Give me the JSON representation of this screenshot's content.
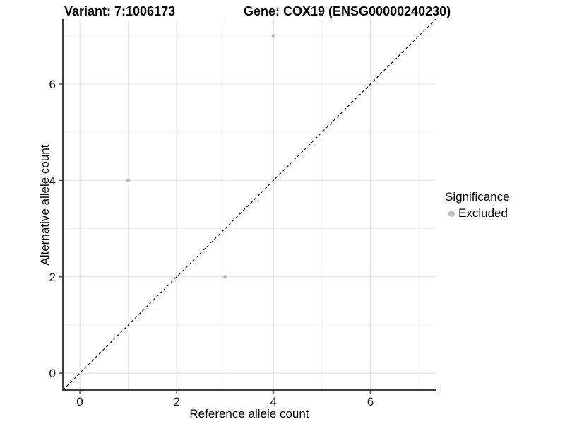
{
  "titles": {
    "variant": "Variant: 7:1006173",
    "gene": "Gene: COX19 (ENSG00000240230)"
  },
  "chart_data": {
    "type": "scatter",
    "title": "Variant: 7:1006173   Gene: COX19 (ENSG00000240230)",
    "xlabel": "Reference allele count",
    "ylabel": "Alternative allele count",
    "xlim": [
      -0.35,
      7.35
    ],
    "ylim": [
      -0.35,
      7.35
    ],
    "x_ticks": [
      0,
      2,
      4,
      6
    ],
    "y_ticks": [
      0,
      2,
      4,
      6
    ],
    "x_tick_labels": [
      "0",
      "2",
      "4",
      "6"
    ],
    "y_tick_labels": [
      "0",
      "2",
      "4",
      "6"
    ],
    "x_minor": [
      1,
      3,
      5,
      7
    ],
    "y_minor": [
      1,
      3,
      5,
      7
    ],
    "grid": true,
    "series": [
      {
        "name": "Excluded",
        "color": "#bebebe",
        "points": [
          {
            "x": 4,
            "y": 7
          },
          {
            "x": 1,
            "y": 4
          },
          {
            "x": 3,
            "y": 2
          }
        ]
      }
    ],
    "reference_line": {
      "kind": "identity y=x",
      "style": "dashed",
      "color": "#000000"
    },
    "legend": {
      "title": "Significance",
      "position": "right",
      "entries": [
        {
          "label": "Excluded",
          "color": "#bebebe"
        }
      ]
    },
    "colors": {
      "background": "#ffffff",
      "grid_major": "#e4e4e4",
      "grid_minor": "#f1f1f1",
      "axis_line": "#404040",
      "tick_mark": "#404040",
      "tick_text": "#1a1a1a",
      "point": "#bebebe",
      "dashed_line": "#000000"
    }
  }
}
